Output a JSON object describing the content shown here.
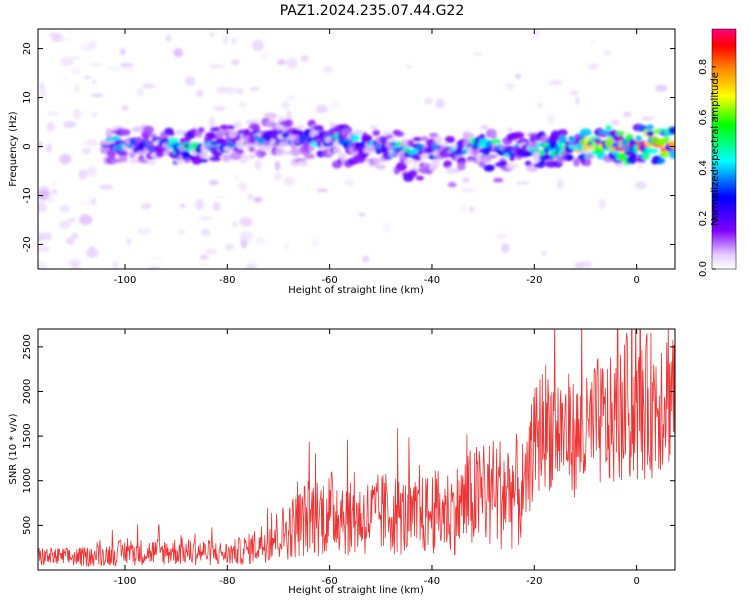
{
  "title": "PAZ1.2024.235.07.44.G22",
  "chart_data": [
    {
      "type": "heatmap",
      "xlabel": "Height of straight line (km)",
      "ylabel": "Frequency (Hz)",
      "xlim": [
        -117,
        7.5
      ],
      "ylim": [
        -25,
        24
      ],
      "xticks": [
        -100,
        -80,
        -60,
        -40,
        -20,
        0
      ],
      "yticks": [
        -20,
        -10,
        0,
        10,
        20
      ],
      "colorbar": {
        "label": "Normalized spectral amplitude",
        "range": [
          0.0,
          0.95
        ],
        "ticks": [
          0.0,
          0.2,
          0.4,
          0.6,
          0.8
        ],
        "colormap": [
          "#ffffff",
          "#e6ccff",
          "#8000ff",
          "#0000ff",
          "#00ffff",
          "#00ff00",
          "#ffff00",
          "#ff8000",
          "#ff0000",
          "#ff0080"
        ]
      },
      "ridge": [
        {
          "x": -102,
          "freq": 0.5,
          "amp": 0.35
        },
        {
          "x": -95,
          "freq": 0.3,
          "amp": 0.3
        },
        {
          "x": -88,
          "freq": 0.0,
          "amp": 0.45
        },
        {
          "x": -82,
          "freq": 0.5,
          "amp": 0.35
        },
        {
          "x": -75,
          "freq": 1.5,
          "amp": 0.3
        },
        {
          "x": -68,
          "freq": 2.0,
          "amp": 0.35
        },
        {
          "x": -60,
          "freq": 1.5,
          "amp": 0.4
        },
        {
          "x": -52,
          "freq": 0.5,
          "amp": 0.35
        },
        {
          "x": -44,
          "freq": -1.0,
          "amp": 0.4
        },
        {
          "x": -36,
          "freq": -1.0,
          "amp": 0.35
        },
        {
          "x": -30,
          "freq": 0.5,
          "amp": 0.45
        },
        {
          "x": -24,
          "freq": -1.0,
          "amp": 0.35
        },
        {
          "x": -18,
          "freq": -0.5,
          "amp": 0.5
        },
        {
          "x": -12,
          "freq": 0.0,
          "amp": 0.6
        },
        {
          "x": -6,
          "freq": 0.5,
          "amp": 0.75
        },
        {
          "x": 0,
          "freq": 0.5,
          "amp": 0.85
        },
        {
          "x": 5,
          "freq": 0.5,
          "amp": 0.9
        }
      ]
    },
    {
      "type": "line",
      "xlabel": "Height of straight line (km)",
      "ylabel": "SNR (10 * v/v)",
      "xlim": [
        -117,
        7.5
      ],
      "ylim": [
        0,
        2700
      ],
      "xticks": [
        -100,
        -80,
        -60,
        -40,
        -20,
        0
      ],
      "yticks": [
        500,
        1000,
        1500,
        2000,
        2500
      ],
      "color": "#ee3333",
      "series": [
        {
          "x": [
            -117,
            -110,
            -105,
            -100,
            -95,
            -90,
            -85,
            -80,
            -76,
            -72,
            -68,
            -64,
            -60,
            -58,
            -56,
            -52,
            -48,
            -44,
            -40,
            -36,
            -32,
            -28,
            -26,
            -24,
            -22,
            -20,
            -18,
            -16,
            -14,
            -12,
            -10,
            -8,
            -6,
            -4,
            -2,
            0,
            2,
            4,
            6,
            7.5
          ],
          "values": [
            150,
            140,
            160,
            200,
            200,
            210,
            200,
            180,
            230,
            340,
            450,
            600,
            630,
            700,
            560,
            600,
            650,
            560,
            640,
            660,
            800,
            860,
            880,
            890,
            830,
            1400,
            1650,
            1570,
            1560,
            1470,
            1480,
            1650,
            1630,
            1660,
            1800,
            1720,
            1830,
            1900,
            2050,
            2100
          ]
        }
      ]
    }
  ]
}
